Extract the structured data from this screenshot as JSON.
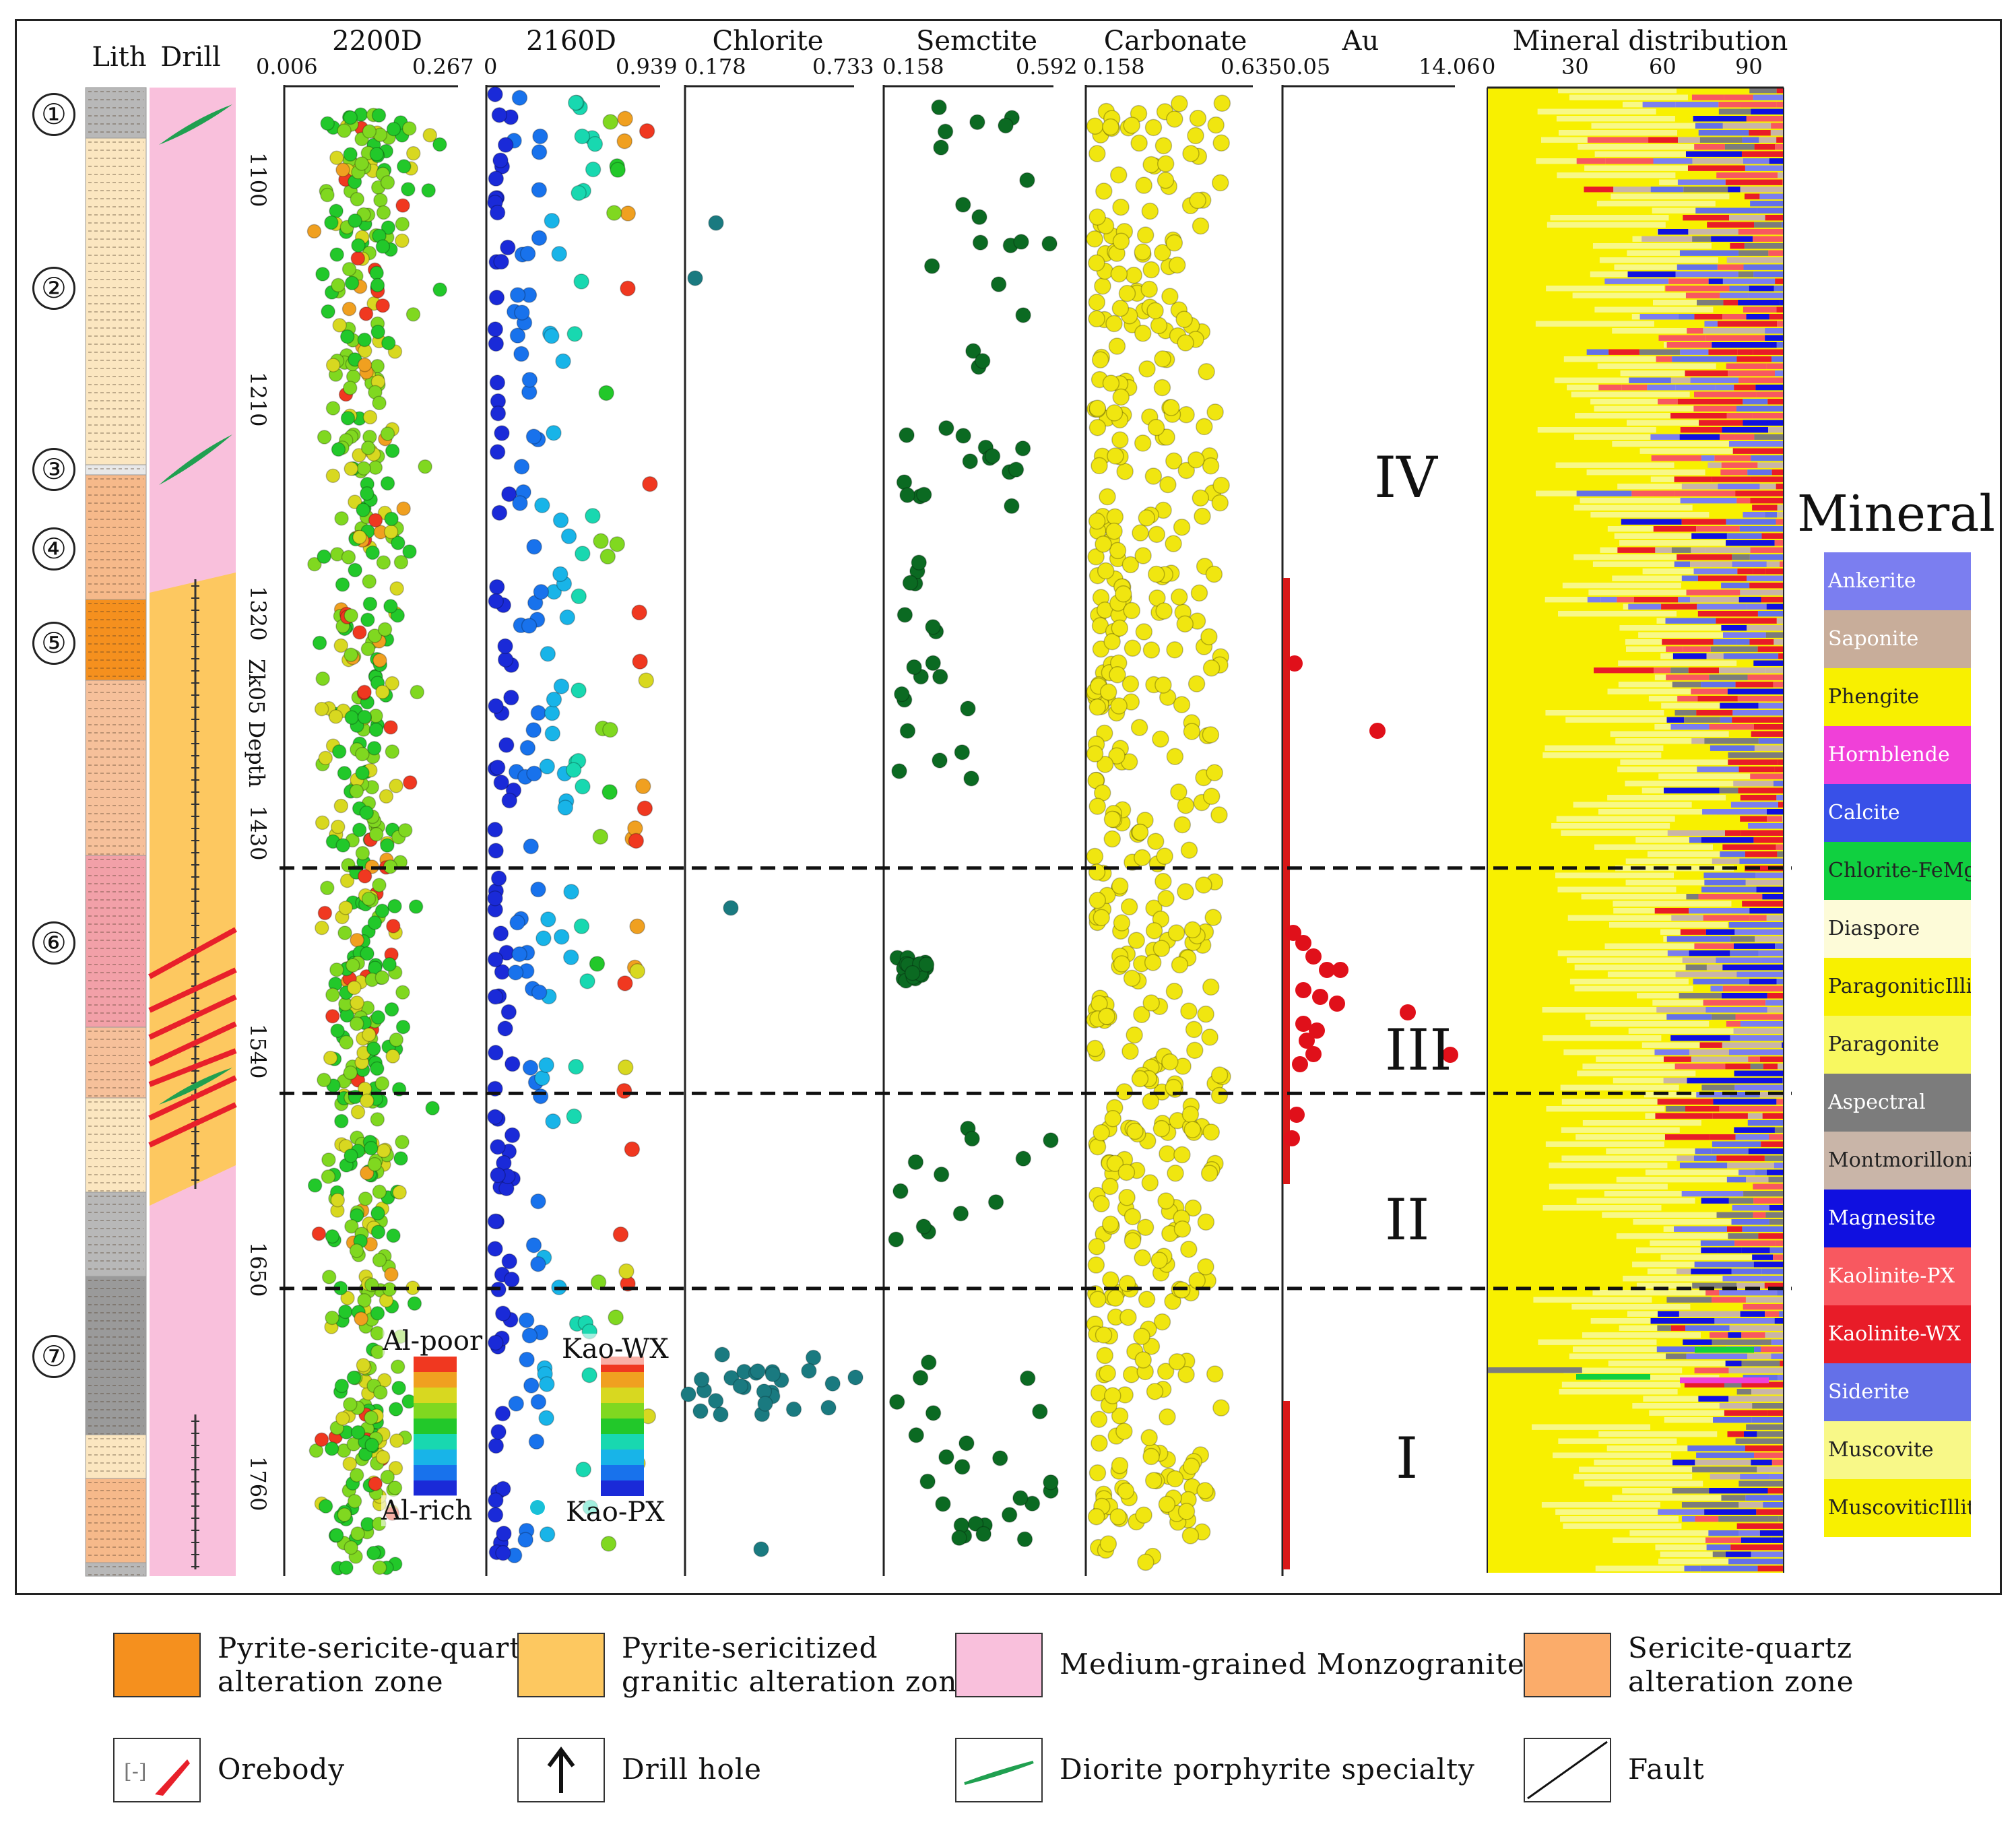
{
  "chart_data": {
    "type": "scatter",
    "title": "",
    "depth_axis": {
      "label": "Zk05 Depth",
      "ticks": [
        "1100",
        "1210",
        "1320",
        "1430",
        "1540",
        "1650",
        "1760"
      ],
      "range": [
        1060,
        1800
      ]
    },
    "lith_header": "Lith",
    "drill_header": "Drill",
    "tracks": [
      {
        "name": "2200D",
        "min": "0.006",
        "max": "0.267",
        "color_scale": "Al",
        "top_label": "Al-poor",
        "bottom_label": "Al-rich"
      },
      {
        "name": "2160D",
        "min": "0",
        "max": "0.939",
        "color_scale": "Kao",
        "top_label": "Kao-WX",
        "bottom_label": "Kao-PX"
      },
      {
        "name": "Chlorite",
        "min": "0.178",
        "max": "0.733"
      },
      {
        "name": "Semctite",
        "min": "0.158",
        "max": "0.592"
      },
      {
        "name": "Carbonate",
        "min": "0.158",
        "max": "0.635"
      },
      {
        "name": "Au",
        "min": "0.05",
        "max": "14.06"
      }
    ],
    "distribution": {
      "title": "Mineral distribution",
      "ticks": [
        "0",
        "30",
        "60",
        "90"
      ],
      "range": [
        0,
        100
      ]
    },
    "zone_numbers": [
      "①",
      "②",
      "③",
      "④",
      "⑤",
      "⑥",
      "⑦"
    ],
    "stages": [
      {
        "label": "IV",
        "from": 1060,
        "to": 1448
      },
      {
        "label": "III",
        "from": 1448,
        "to": 1560
      },
      {
        "label": "II",
        "from": 1560,
        "to": 1657
      },
      {
        "label": "I",
        "from": 1657,
        "to": 1800
      }
    ],
    "stage_boundaries": [
      1448,
      1560,
      1657
    ]
  },
  "mineral_legend": {
    "title": "Mineral",
    "items": [
      {
        "name": "Ankerite",
        "color": "#7b7ef0",
        "text": "#ffffff"
      },
      {
        "name": "Saponite",
        "color": "#c8ad9a",
        "text": "#ffffff"
      },
      {
        "name": "Phengite",
        "color": "#f8f000",
        "text": "#222222"
      },
      {
        "name": "Hornblende",
        "color": "#f040d8",
        "text": "#ffffff"
      },
      {
        "name": "Calcite",
        "color": "#3850e8",
        "text": "#ffffff"
      },
      {
        "name": "Chlorite-FeMg",
        "color": "#10d040",
        "text": "#222222"
      },
      {
        "name": "Diaspore",
        "color": "#fdfbd8",
        "text": "#222222"
      },
      {
        "name": "ParagoniticIllite",
        "color": "#f8f000",
        "text": "#222222"
      },
      {
        "name": "Paragonite",
        "color": "#f8f860",
        "text": "#222222"
      },
      {
        "name": "Aspectral",
        "color": "#7c7c7c",
        "text": "#ffffff"
      },
      {
        "name": "Montmorillonite",
        "color": "#c9b5a8",
        "text": "#222222"
      },
      {
        "name": "Magnesite",
        "color": "#1010e0",
        "text": "#ffffff"
      },
      {
        "name": "Kaolinite-PX",
        "color": "#f85860",
        "text": "#ffffff"
      },
      {
        "name": "Kaolinite-WX",
        "color": "#e81c28",
        "text": "#ffffff"
      },
      {
        "name": "Siderite",
        "color": "#6470e8",
        "text": "#ffffff"
      },
      {
        "name": "Muscovite",
        "color": "#f8f888",
        "text": "#222222"
      },
      {
        "name": "MuscoviticIllite",
        "color": "#f8f000",
        "text": "#222222"
      }
    ]
  },
  "bottom_legend": [
    {
      "label": "Pyrite-sericite-quartz alteration zone",
      "line1": "Pyrite-sericite-quartz",
      "line2": "alteration zone",
      "color": "#f5901e",
      "icon": "swatch"
    },
    {
      "label": "Pyrite-sericitized granitic alteration zone",
      "line1": "Pyrite-sericitized",
      "line2": "granitic alteration zone",
      "color": "#fdc860",
      "icon": "swatch"
    },
    {
      "label": "Medium-grained Monzogranite",
      "line1": "Medium-grained Monzogranite",
      "line2": "",
      "color": "#f9c0dc",
      "icon": "swatch"
    },
    {
      "label": "Sericite-quartz alteration zone",
      "line1": "Sericite-quartz",
      "line2": "alteration zone",
      "color": "#fbac6a",
      "icon": "swatch"
    },
    {
      "label": "Orebody",
      "line1": "Orebody",
      "line2": "",
      "color": "#e8202a",
      "icon": "orebody"
    },
    {
      "label": "Drill hole",
      "line1": "Drill hole",
      "line2": "",
      "color": "#111111",
      "icon": "arrow"
    },
    {
      "label": "Diorite porphyrite specialty",
      "line1": "Diorite porphyrite specialty",
      "line2": "",
      "color": "#20a050",
      "icon": "dike"
    },
    {
      "label": "Fault",
      "line1": "Fault",
      "line2": "",
      "color": "#111111",
      "icon": "fault"
    }
  ],
  "orebody_icon_text": "[-]"
}
